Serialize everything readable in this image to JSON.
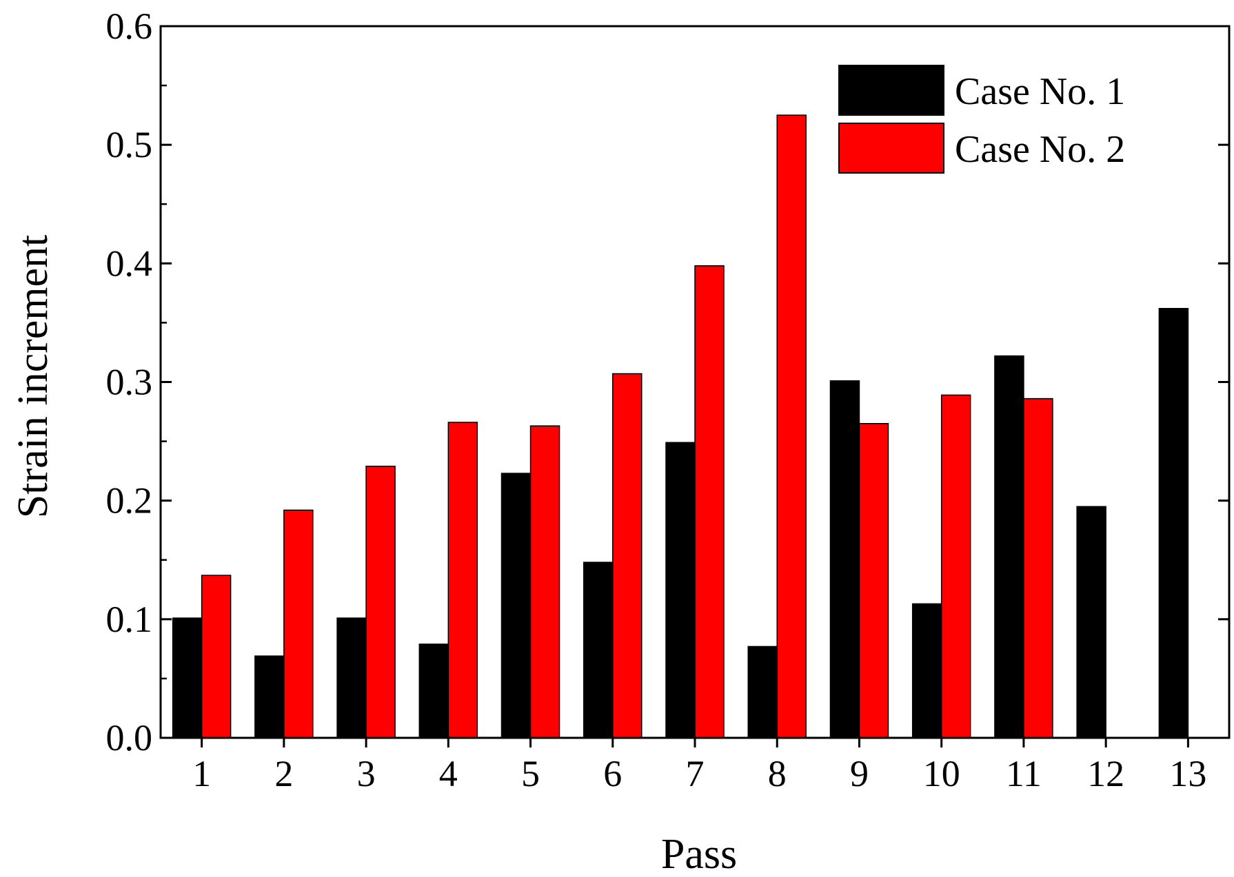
{
  "chart_data": {
    "type": "bar",
    "xlabel": "Pass",
    "ylabel": "Strain increment",
    "categories": [
      "1",
      "2",
      "3",
      "4",
      "5",
      "6",
      "7",
      "8",
      "9",
      "10",
      "11",
      "12",
      "13"
    ],
    "series": [
      {
        "name": "Case No. 1",
        "color": "#000000",
        "values": [
          0.101,
          0.069,
          0.101,
          0.079,
          0.223,
          0.148,
          0.249,
          0.077,
          0.301,
          0.113,
          0.322,
          0.195,
          0.362
        ]
      },
      {
        "name": "Case No. 2",
        "color": "#ff0000",
        "values": [
          0.137,
          0.192,
          0.229,
          0.266,
          0.263,
          0.307,
          0.398,
          0.525,
          0.265,
          0.289,
          0.286,
          null,
          null
        ]
      }
    ],
    "ylim": [
      0,
      0.6
    ],
    "yticks": [
      "0.0",
      "0.1",
      "0.2",
      "0.3",
      "0.4",
      "0.5",
      "0.6"
    ],
    "legend_position": "top-right",
    "grid": false
  }
}
